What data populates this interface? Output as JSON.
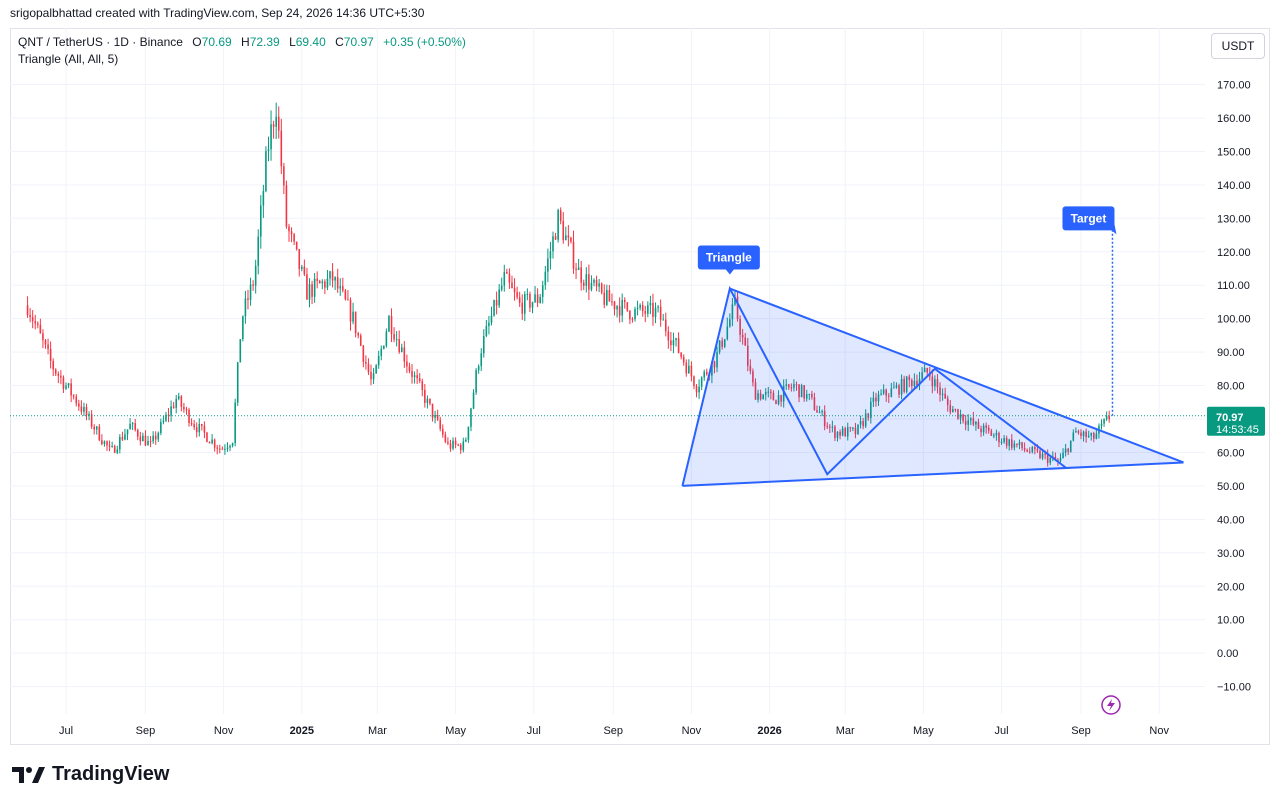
{
  "header": {
    "attribution": "srigopalbhattad created with TradingView.com, Sep 24, 2026 14:36 UTC+5:30"
  },
  "legend": {
    "symbol": "QNT / TetherUS · 1D · Binance",
    "open_label": "O",
    "open": "70.69",
    "high_label": "H",
    "high": "72.39",
    "low_label": "L",
    "low": "69.40",
    "close_label": "C",
    "close": "70.97",
    "change": "+0.35 (+0.50%)",
    "indicator": "Triangle (All, All, 5)"
  },
  "currency": "USDT",
  "price_tag": {
    "price": "70.97",
    "countdown": "14:53:45"
  },
  "footer": {
    "brand": "TradingView"
  },
  "colors": {
    "up": "#089981",
    "down": "#f23645",
    "pattern": "#2962ff",
    "fill": "#2962ff",
    "accent": "#9c27b0"
  },
  "chart_data": {
    "type": "candlestick",
    "y_axis": {
      "min": -10,
      "max": 170,
      "ticks": [
        "170.00",
        "160.00",
        "150.00",
        "140.00",
        "130.00",
        "120.00",
        "110.00",
        "100.00",
        "90.00",
        "80.00",
        "70.00",
        "60.00",
        "50.00",
        "40.00",
        "30.00",
        "20.00",
        "10.00",
        "0.00",
        "−10.00"
      ]
    },
    "x_axis": {
      "ticks": [
        "Jul",
        "Sep",
        "Nov",
        "2025",
        "Mar",
        "May",
        "Jul",
        "Sep",
        "Nov",
        "2026",
        "Mar",
        "May",
        "Jul",
        "Sep",
        "Nov"
      ],
      "bold": [
        "2025",
        "2026"
      ]
    },
    "last_price": 70.97,
    "price_path": [
      [
        "2024-06-01",
        104
      ],
      [
        "2024-06-20",
        86
      ],
      [
        "2024-07-10",
        75
      ],
      [
        "2024-08-05",
        60
      ],
      [
        "2024-08-20",
        68
      ],
      [
        "2024-09-05",
        62
      ],
      [
        "2024-09-25",
        76
      ],
      [
        "2024-10-10",
        68
      ],
      [
        "2024-10-30",
        61
      ],
      [
        "2024-11-08",
        64
      ],
      [
        "2024-11-15",
        100
      ],
      [
        "2024-11-25",
        112
      ],
      [
        "2024-12-05",
        150
      ],
      [
        "2024-12-12",
        164
      ],
      [
        "2024-12-20",
        128
      ],
      [
        "2025-01-05",
        108
      ],
      [
        "2025-01-25",
        112
      ],
      [
        "2025-02-10",
        100
      ],
      [
        "2025-02-25",
        80
      ],
      [
        "2025-03-10",
        100
      ],
      [
        "2025-03-25",
        86
      ],
      [
        "2025-04-10",
        74
      ],
      [
        "2025-04-25",
        62
      ],
      [
        "2025-05-08",
        62
      ],
      [
        "2025-05-20",
        90
      ],
      [
        "2025-06-08",
        112
      ],
      [
        "2025-06-20",
        104
      ],
      [
        "2025-07-05",
        106
      ],
      [
        "2025-07-20",
        130
      ],
      [
        "2025-08-05",
        114
      ],
      [
        "2025-08-25",
        106
      ],
      [
        "2025-09-15",
        102
      ],
      [
        "2025-10-05",
        102
      ],
      [
        "2025-10-20",
        92
      ],
      [
        "2025-11-05",
        80
      ],
      [
        "2025-11-20",
        88
      ],
      [
        "2025-12-05",
        104
      ],
      [
        "2025-12-20",
        78
      ],
      [
        "2026-01-05",
        76
      ],
      [
        "2026-01-20",
        80
      ],
      [
        "2026-02-01",
        76
      ],
      [
        "2026-02-20",
        66
      ],
      [
        "2026-03-10",
        66
      ],
      [
        "2026-03-25",
        76
      ],
      [
        "2026-04-15",
        80
      ],
      [
        "2026-05-05",
        84
      ],
      [
        "2026-05-20",
        74
      ],
      [
        "2026-06-10",
        68
      ],
      [
        "2026-07-01",
        64
      ],
      [
        "2026-07-25",
        60
      ],
      [
        "2026-08-15",
        57
      ],
      [
        "2026-08-28",
        66
      ],
      [
        "2026-09-10",
        64
      ],
      [
        "2026-09-24",
        70.97
      ]
    ],
    "triangle_pattern": {
      "points": [
        [
          "2025-10-25",
          50
        ],
        [
          "2025-12-01",
          109
        ],
        [
          "2026-02-15",
          53.5
        ],
        [
          "2026-05-10",
          85
        ],
        [
          "2026-08-20",
          55.5
        ]
      ],
      "upper_line": [
        [
          "2025-12-01",
          109
        ],
        [
          "2026-11-20",
          57
        ]
      ],
      "lower_line": [
        [
          "2025-10-25",
          50
        ],
        [
          "2026-11-20",
          57
        ]
      ],
      "label": "Triangle",
      "target_label": "Target",
      "target_price": 127
    }
  }
}
